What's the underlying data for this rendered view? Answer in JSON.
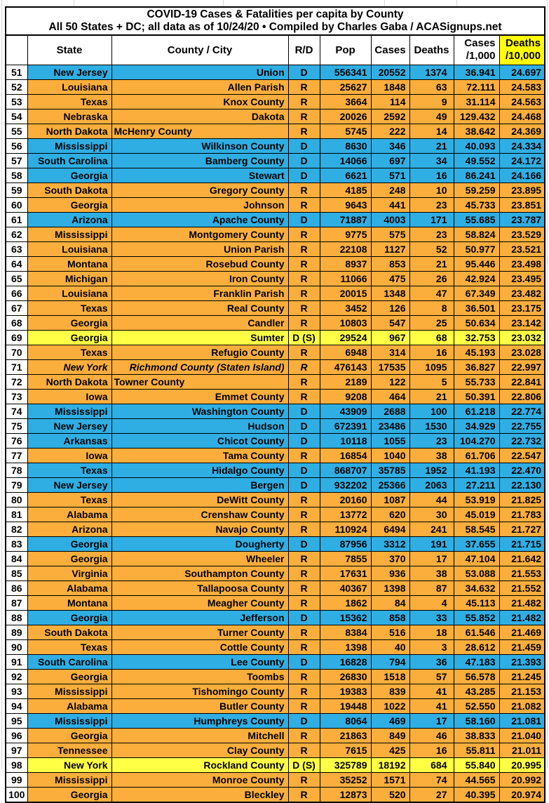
{
  "title": {
    "line1": "COVID-19 Cases & Fatalities per capita by County",
    "line2": "All 50 States + DC; all data as of 10/24/20  • Compiled by Charles Gaba / ACASignups.net"
  },
  "colors": {
    "democrat_blue": "#2FAEE3",
    "republican_orange": "#FBAE3C",
    "split_yellow": "#FFFF45",
    "header_highlight_yellow": "#FFFF00",
    "border_black": "#000000",
    "margin_gridline_grey": "#d9d9d9"
  },
  "chart_data": {
    "type": "table",
    "header": {
      "rank": "",
      "state": "State",
      "county": "County / City",
      "rd": "R/D",
      "pop": "Pop",
      "cases": "Cases",
      "deaths": "Deaths",
      "cases_per_1000_line1": "Cases",
      "cases_per_1000_line2": "/1,000",
      "deaths_per_10000_line1": "Deaths",
      "deaths_per_10000_line2": "/10,000"
    },
    "party_color_key": {
      "d": "democrat_blue",
      "r": "republican_orange",
      "s": "split_yellow"
    },
    "rows": [
      {
        "rank": "51",
        "state": "New Jersey",
        "county": "Union",
        "rd": "D",
        "pop": "556341",
        "cases": "20552",
        "deaths": "1374",
        "cases_per_1000": "36.941",
        "deaths_per_10000": "24.697",
        "party": "d"
      },
      {
        "rank": "52",
        "state": "Louisiana",
        "county": "Allen Parish",
        "rd": "R",
        "pop": "25627",
        "cases": "1848",
        "deaths": "63",
        "cases_per_1000": "72.111",
        "deaths_per_10000": "24.583",
        "party": "r"
      },
      {
        "rank": "53",
        "state": "Texas",
        "county": "Knox County",
        "rd": "R",
        "pop": "3664",
        "cases": "114",
        "deaths": "9",
        "cases_per_1000": "31.114",
        "deaths_per_10000": "24.563",
        "party": "r"
      },
      {
        "rank": "54",
        "state": "Nebraska",
        "county": "Dakota",
        "rd": "R",
        "pop": "20026",
        "cases": "2592",
        "deaths": "49",
        "cases_per_1000": "129.432",
        "deaths_per_10000": "24.468",
        "party": "r"
      },
      {
        "rank": "55",
        "state": "North Dakota",
        "county": "McHenry County",
        "rd": "R",
        "pop": "5745",
        "cases": "222",
        "deaths": "14",
        "cases_per_1000": "38.642",
        "deaths_per_10000": "24.369",
        "party": "r",
        "county_align": "left"
      },
      {
        "rank": "56",
        "state": "Mississippi",
        "county": "Wilkinson County",
        "rd": "D",
        "pop": "8630",
        "cases": "346",
        "deaths": "21",
        "cases_per_1000": "40.093",
        "deaths_per_10000": "24.334",
        "party": "d"
      },
      {
        "rank": "57",
        "state": "South Carolina",
        "county": "Bamberg County",
        "rd": "D",
        "pop": "14066",
        "cases": "697",
        "deaths": "34",
        "cases_per_1000": "49.552",
        "deaths_per_10000": "24.172",
        "party": "d"
      },
      {
        "rank": "58",
        "state": "Georgia",
        "county": "Stewart",
        "rd": "D",
        "pop": "6621",
        "cases": "571",
        "deaths": "16",
        "cases_per_1000": "86.241",
        "deaths_per_10000": "24.166",
        "party": "d"
      },
      {
        "rank": "59",
        "state": "South Dakota",
        "county": "Gregory County",
        "rd": "R",
        "pop": "4185",
        "cases": "248",
        "deaths": "10",
        "cases_per_1000": "59.259",
        "deaths_per_10000": "23.895",
        "party": "r"
      },
      {
        "rank": "60",
        "state": "Georgia",
        "county": "Johnson",
        "rd": "R",
        "pop": "9643",
        "cases": "441",
        "deaths": "23",
        "cases_per_1000": "45.733",
        "deaths_per_10000": "23.851",
        "party": "r"
      },
      {
        "rank": "61",
        "state": "Arizona",
        "county": "Apache County",
        "rd": "D",
        "pop": "71887",
        "cases": "4003",
        "deaths": "171",
        "cases_per_1000": "55.685",
        "deaths_per_10000": "23.787",
        "party": "d"
      },
      {
        "rank": "62",
        "state": "Mississippi",
        "county": "Montgomery County",
        "rd": "R",
        "pop": "9775",
        "cases": "575",
        "deaths": "23",
        "cases_per_1000": "58.824",
        "deaths_per_10000": "23.529",
        "party": "r"
      },
      {
        "rank": "63",
        "state": "Louisiana",
        "county": "Union Parish",
        "rd": "R",
        "pop": "22108",
        "cases": "1127",
        "deaths": "52",
        "cases_per_1000": "50.977",
        "deaths_per_10000": "23.521",
        "party": "r"
      },
      {
        "rank": "64",
        "state": "Montana",
        "county": "Rosebud County",
        "rd": "R",
        "pop": "8937",
        "cases": "853",
        "deaths": "21",
        "cases_per_1000": "95.446",
        "deaths_per_10000": "23.498",
        "party": "r"
      },
      {
        "rank": "65",
        "state": "Michigan",
        "county": "Iron County",
        "rd": "R",
        "pop": "11066",
        "cases": "475",
        "deaths": "26",
        "cases_per_1000": "42.924",
        "deaths_per_10000": "23.495",
        "party": "r"
      },
      {
        "rank": "66",
        "state": "Louisiana",
        "county": "Franklin Parish",
        "rd": "R",
        "pop": "20015",
        "cases": "1348",
        "deaths": "47",
        "cases_per_1000": "67.349",
        "deaths_per_10000": "23.482",
        "party": "r"
      },
      {
        "rank": "67",
        "state": "Texas",
        "county": "Real County",
        "rd": "R",
        "pop": "3452",
        "cases": "126",
        "deaths": "8",
        "cases_per_1000": "36.501",
        "deaths_per_10000": "23.175",
        "party": "r"
      },
      {
        "rank": "68",
        "state": "Georgia",
        "county": "Candler",
        "rd": "R",
        "pop": "10803",
        "cases": "547",
        "deaths": "25",
        "cases_per_1000": "50.634",
        "deaths_per_10000": "23.142",
        "party": "r"
      },
      {
        "rank": "69",
        "state": "Georgia",
        "county": "Sumter",
        "rd": "D (S)",
        "pop": "29524",
        "cases": "967",
        "deaths": "68",
        "cases_per_1000": "32.753",
        "deaths_per_10000": "23.032",
        "party": "s"
      },
      {
        "rank": "70",
        "state": "Texas",
        "county": "Refugio County",
        "rd": "R",
        "pop": "6948",
        "cases": "314",
        "deaths": "16",
        "cases_per_1000": "45.193",
        "deaths_per_10000": "23.028",
        "party": "r"
      },
      {
        "rank": "71",
        "state": "New York",
        "county": "Richmond County (Staten Island)",
        "rd": "R",
        "pop": "476143",
        "cases": "17535",
        "deaths": "1095",
        "cases_per_1000": "36.827",
        "deaths_per_10000": "22.997",
        "party": "r",
        "italic": true
      },
      {
        "rank": "72",
        "state": "North Dakota",
        "county": "Towner County",
        "rd": "R",
        "pop": "2189",
        "cases": "122",
        "deaths": "5",
        "cases_per_1000": "55.733",
        "deaths_per_10000": "22.841",
        "party": "r",
        "county_align": "left"
      },
      {
        "rank": "73",
        "state": "Iowa",
        "county": "Emmet County",
        "rd": "R",
        "pop": "9208",
        "cases": "464",
        "deaths": "21",
        "cases_per_1000": "50.391",
        "deaths_per_10000": "22.806",
        "party": "r"
      },
      {
        "rank": "74",
        "state": "Mississippi",
        "county": "Washington County",
        "rd": "D",
        "pop": "43909",
        "cases": "2688",
        "deaths": "100",
        "cases_per_1000": "61.218",
        "deaths_per_10000": "22.774",
        "party": "d"
      },
      {
        "rank": "75",
        "state": "New Jersey",
        "county": "Hudson",
        "rd": "D",
        "pop": "672391",
        "cases": "23486",
        "deaths": "1530",
        "cases_per_1000": "34.929",
        "deaths_per_10000": "22.755",
        "party": "d"
      },
      {
        "rank": "76",
        "state": "Arkansas",
        "county": "Chicot County",
        "rd": "D",
        "pop": "10118",
        "cases": "1055",
        "deaths": "23",
        "cases_per_1000": "104.270",
        "deaths_per_10000": "22.732",
        "party": "d"
      },
      {
        "rank": "77",
        "state": "Iowa",
        "county": "Tama County",
        "rd": "R",
        "pop": "16854",
        "cases": "1040",
        "deaths": "38",
        "cases_per_1000": "61.706",
        "deaths_per_10000": "22.547",
        "party": "r"
      },
      {
        "rank": "78",
        "state": "Texas",
        "county": "Hidalgo County",
        "rd": "D",
        "pop": "868707",
        "cases": "35785",
        "deaths": "1952",
        "cases_per_1000": "41.193",
        "deaths_per_10000": "22.470",
        "party": "d"
      },
      {
        "rank": "79",
        "state": "New Jersey",
        "county": "Bergen",
        "rd": "D",
        "pop": "932202",
        "cases": "25366",
        "deaths": "2063",
        "cases_per_1000": "27.211",
        "deaths_per_10000": "22.130",
        "party": "d"
      },
      {
        "rank": "80",
        "state": "Texas",
        "county": "DeWitt County",
        "rd": "R",
        "pop": "20160",
        "cases": "1087",
        "deaths": "44",
        "cases_per_1000": "53.919",
        "deaths_per_10000": "21.825",
        "party": "r"
      },
      {
        "rank": "81",
        "state": "Alabama",
        "county": "Crenshaw County",
        "rd": "R",
        "pop": "13772",
        "cases": "620",
        "deaths": "30",
        "cases_per_1000": "45.019",
        "deaths_per_10000": "21.783",
        "party": "r"
      },
      {
        "rank": "82",
        "state": "Arizona",
        "county": "Navajo County",
        "rd": "R",
        "pop": "110924",
        "cases": "6494",
        "deaths": "241",
        "cases_per_1000": "58.545",
        "deaths_per_10000": "21.727",
        "party": "r"
      },
      {
        "rank": "83",
        "state": "Georgia",
        "county": "Dougherty",
        "rd": "D",
        "pop": "87956",
        "cases": "3312",
        "deaths": "191",
        "cases_per_1000": "37.655",
        "deaths_per_10000": "21.715",
        "party": "d"
      },
      {
        "rank": "84",
        "state": "Georgia",
        "county": "Wheeler",
        "rd": "R",
        "pop": "7855",
        "cases": "370",
        "deaths": "17",
        "cases_per_1000": "47.104",
        "deaths_per_10000": "21.642",
        "party": "r"
      },
      {
        "rank": "85",
        "state": "Virginia",
        "county": "Southampton County",
        "rd": "R",
        "pop": "17631",
        "cases": "936",
        "deaths": "38",
        "cases_per_1000": "53.088",
        "deaths_per_10000": "21.553",
        "party": "r"
      },
      {
        "rank": "86",
        "state": "Alabama",
        "county": "Tallapoosa County",
        "rd": "R",
        "pop": "40367",
        "cases": "1398",
        "deaths": "87",
        "cases_per_1000": "34.632",
        "deaths_per_10000": "21.552",
        "party": "r"
      },
      {
        "rank": "87",
        "state": "Montana",
        "county": "Meagher County",
        "rd": "R",
        "pop": "1862",
        "cases": "84",
        "deaths": "4",
        "cases_per_1000": "45.113",
        "deaths_per_10000": "21.482",
        "party": "r"
      },
      {
        "rank": "88",
        "state": "Georgia",
        "county": "Jefferson",
        "rd": "D",
        "pop": "15362",
        "cases": "858",
        "deaths": "33",
        "cases_per_1000": "55.852",
        "deaths_per_10000": "21.482",
        "party": "d"
      },
      {
        "rank": "89",
        "state": "South Dakota",
        "county": "Turner County",
        "rd": "R",
        "pop": "8384",
        "cases": "516",
        "deaths": "18",
        "cases_per_1000": "61.546",
        "deaths_per_10000": "21.469",
        "party": "r"
      },
      {
        "rank": "90",
        "state": "Texas",
        "county": "Cottle County",
        "rd": "R",
        "pop": "1398",
        "cases": "40",
        "deaths": "3",
        "cases_per_1000": "28.612",
        "deaths_per_10000": "21.459",
        "party": "r"
      },
      {
        "rank": "91",
        "state": "South Carolina",
        "county": "Lee County",
        "rd": "D",
        "pop": "16828",
        "cases": "794",
        "deaths": "36",
        "cases_per_1000": "47.183",
        "deaths_per_10000": "21.393",
        "party": "d"
      },
      {
        "rank": "92",
        "state": "Georgia",
        "county": "Toombs",
        "rd": "R",
        "pop": "26830",
        "cases": "1518",
        "deaths": "57",
        "cases_per_1000": "56.578",
        "deaths_per_10000": "21.245",
        "party": "r"
      },
      {
        "rank": "93",
        "state": "Mississippi",
        "county": "Tishomingo County",
        "rd": "R",
        "pop": "19383",
        "cases": "839",
        "deaths": "41",
        "cases_per_1000": "43.285",
        "deaths_per_10000": "21.153",
        "party": "r"
      },
      {
        "rank": "94",
        "state": "Alabama",
        "county": "Butler County",
        "rd": "R",
        "pop": "19448",
        "cases": "1022",
        "deaths": "41",
        "cases_per_1000": "52.550",
        "deaths_per_10000": "21.082",
        "party": "r"
      },
      {
        "rank": "95",
        "state": "Mississippi",
        "county": "Humphreys County",
        "rd": "D",
        "pop": "8064",
        "cases": "469",
        "deaths": "17",
        "cases_per_1000": "58.160",
        "deaths_per_10000": "21.081",
        "party": "d"
      },
      {
        "rank": "96",
        "state": "Georgia",
        "county": "Mitchell",
        "rd": "R",
        "pop": "21863",
        "cases": "849",
        "deaths": "46",
        "cases_per_1000": "38.833",
        "deaths_per_10000": "21.040",
        "party": "r"
      },
      {
        "rank": "97",
        "state": "Tennessee",
        "county": "Clay County",
        "rd": "R",
        "pop": "7615",
        "cases": "425",
        "deaths": "16",
        "cases_per_1000": "55.811",
        "deaths_per_10000": "21.011",
        "party": "r"
      },
      {
        "rank": "98",
        "state": "New York",
        "county": "Rockland County",
        "rd": "D (S)",
        "pop": "325789",
        "cases": "18192",
        "deaths": "684",
        "cases_per_1000": "55.840",
        "deaths_per_10000": "20.995",
        "party": "s"
      },
      {
        "rank": "99",
        "state": "Mississippi",
        "county": "Monroe County",
        "rd": "R",
        "pop": "35252",
        "cases": "1571",
        "deaths": "74",
        "cases_per_1000": "44.565",
        "deaths_per_10000": "20.992",
        "party": "r"
      },
      {
        "rank": "100",
        "state": "Georgia",
        "county": "Bleckley",
        "rd": "R",
        "pop": "12873",
        "cases": "520",
        "deaths": "27",
        "cases_per_1000": "40.395",
        "deaths_per_10000": "20.974",
        "party": "r"
      }
    ]
  }
}
